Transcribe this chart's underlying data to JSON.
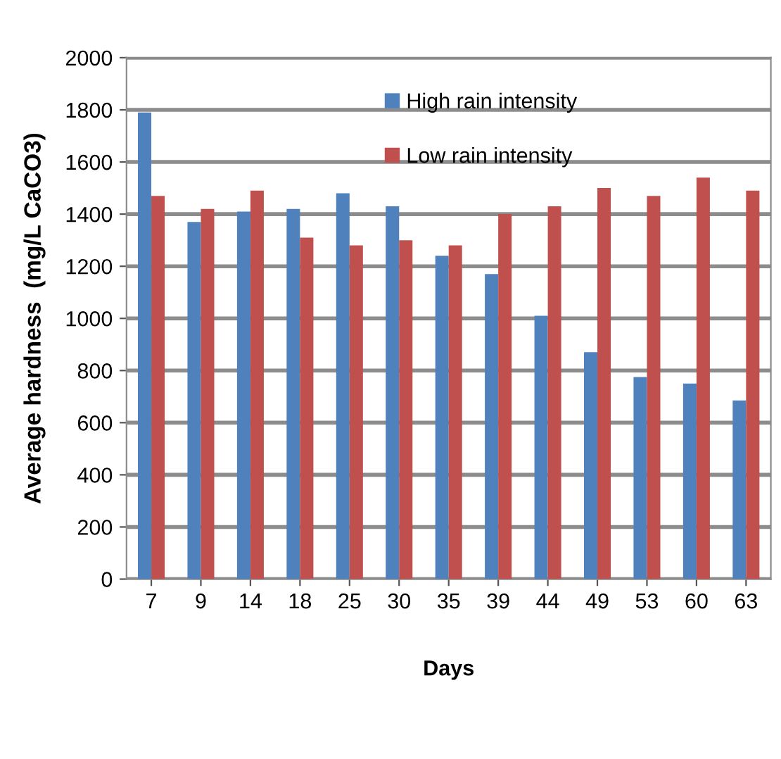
{
  "chart_data": {
    "type": "bar",
    "xlabel": "Days",
    "ylabel": "Average hardness  (mg/L CaCO3)",
    "categories": [
      "7",
      "9",
      "14",
      "18",
      "25",
      "30",
      "35",
      "39",
      "44",
      "49",
      "53",
      "60",
      "63"
    ],
    "series": [
      {
        "name": "High rain intensity",
        "color": "#4f81bd",
        "values": [
          1790,
          1370,
          1410,
          1420,
          1480,
          1430,
          1240,
          1170,
          1010,
          870,
          775,
          750,
          685
        ]
      },
      {
        "name": "Low rain intensity",
        "color": "#c0504d",
        "values": [
          1470,
          1420,
          1490,
          1310,
          1280,
          1300,
          1280,
          1400,
          1430,
          1500,
          1470,
          1540,
          1490
        ]
      }
    ],
    "ylim": [
      0,
      2000
    ],
    "yticks": [
      0,
      200,
      400,
      600,
      800,
      1000,
      1200,
      1400,
      1600,
      1800,
      2000
    ],
    "grid": "y",
    "legend": "top"
  }
}
